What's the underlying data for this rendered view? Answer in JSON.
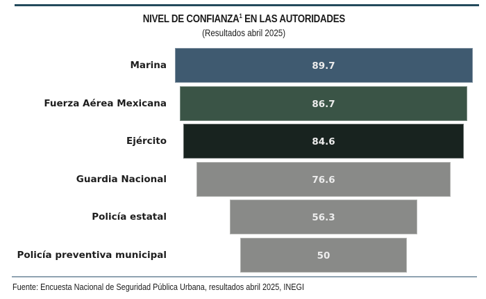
{
  "chart_data": {
    "type": "bar",
    "orientation": "horizontal-funnel",
    "title": "NIVEL DE CONFIANZA",
    "title_superscript": "1",
    "title_suffix": " EN LAS AUTORIDADES",
    "subtitle": "(Resultados abril 2025)",
    "xlabel": "",
    "ylabel": "",
    "categories": [
      "Marina",
      "Fuerza Aérea Mexicana",
      "Ejército",
      "Guardia Nacional",
      "Policía estatal",
      "Policía preventiva municipal"
    ],
    "values": [
      89.7,
      86.7,
      84.6,
      76.6,
      56.3,
      50
    ],
    "value_labels": [
      "89.7",
      "86.7",
      "84.6",
      "76.6",
      "56.3",
      "50"
    ],
    "colors": [
      "#3f5a70",
      "#3a5446",
      "#18231f",
      "#898a88",
      "#898a88",
      "#898a88"
    ],
    "grid": false,
    "legend": "none",
    "source": "Fuente: Encuesta Nacional de Seguridad Pública Urbana, resultados abril 2025, INEGI"
  }
}
